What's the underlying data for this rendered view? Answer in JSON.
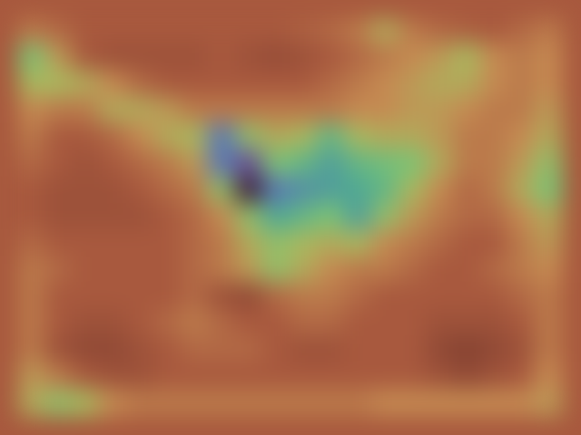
{
  "chart_data": {
    "type": "heatmap",
    "tick_labels": false,
    "zlim": [
      0,
      1
    ],
    "cells": [
      [
        0.3,
        0.25,
        0.2,
        0.2,
        0.2,
        0.2,
        0.2,
        0.2,
        0.2,
        0.2,
        0.22,
        0.25,
        0.3,
        0.45,
        0.3,
        0.25,
        0.22,
        0.2,
        0.25,
        0.3
      ],
      [
        0.6,
        0.4,
        0.2,
        0.15,
        0.15,
        0.15,
        0.15,
        0.2,
        0.15,
        0.12,
        0.15,
        0.2,
        0.25,
        0.3,
        0.35,
        0.4,
        0.5,
        0.35,
        0.3,
        0.35
      ],
      [
        0.5,
        0.5,
        0.45,
        0.35,
        0.25,
        0.2,
        0.2,
        0.2,
        0.2,
        0.2,
        0.2,
        0.25,
        0.3,
        0.35,
        0.4,
        0.45,
        0.45,
        0.35,
        0.3,
        0.35
      ],
      [
        0.35,
        0.3,
        0.3,
        0.45,
        0.45,
        0.4,
        0.3,
        0.3,
        0.3,
        0.3,
        0.3,
        0.3,
        0.35,
        0.35,
        0.4,
        0.4,
        0.35,
        0.3,
        0.3,
        0.4
      ],
      [
        0.3,
        0.2,
        0.2,
        0.25,
        0.35,
        0.45,
        0.5,
        0.8,
        0.55,
        0.45,
        0.5,
        0.65,
        0.5,
        0.45,
        0.45,
        0.4,
        0.3,
        0.3,
        0.35,
        0.45
      ],
      [
        0.25,
        0.2,
        0.15,
        0.2,
        0.25,
        0.3,
        0.4,
        0.8,
        0.9,
        0.6,
        0.65,
        0.72,
        0.65,
        0.62,
        0.6,
        0.45,
        0.3,
        0.3,
        0.4,
        0.55
      ],
      [
        0.2,
        0.15,
        0.15,
        0.15,
        0.2,
        0.25,
        0.3,
        0.55,
        1.0,
        0.8,
        0.75,
        0.72,
        0.7,
        0.65,
        0.5,
        0.35,
        0.25,
        0.3,
        0.45,
        0.6
      ],
      [
        0.2,
        0.15,
        0.15,
        0.15,
        0.15,
        0.2,
        0.25,
        0.35,
        0.55,
        0.7,
        0.65,
        0.6,
        0.72,
        0.55,
        0.4,
        0.3,
        0.25,
        0.25,
        0.35,
        0.45
      ],
      [
        0.25,
        0.2,
        0.2,
        0.2,
        0.2,
        0.2,
        0.25,
        0.3,
        0.45,
        0.55,
        0.5,
        0.45,
        0.5,
        0.35,
        0.3,
        0.25,
        0.2,
        0.2,
        0.3,
        0.4
      ],
      [
        0.3,
        0.25,
        0.2,
        0.2,
        0.2,
        0.2,
        0.25,
        0.3,
        0.4,
        0.55,
        0.45,
        0.35,
        0.3,
        0.3,
        0.25,
        0.2,
        0.2,
        0.25,
        0.3,
        0.35
      ],
      [
        0.3,
        0.2,
        0.2,
        0.2,
        0.2,
        0.2,
        0.25,
        0.15,
        0.1,
        0.25,
        0.3,
        0.3,
        0.25,
        0.2,
        0.2,
        0.2,
        0.2,
        0.2,
        0.25,
        0.3
      ],
      [
        0.3,
        0.2,
        0.15,
        0.15,
        0.2,
        0.25,
        0.3,
        0.25,
        0.2,
        0.2,
        0.25,
        0.25,
        0.2,
        0.2,
        0.2,
        0.15,
        0.15,
        0.15,
        0.2,
        0.3
      ],
      [
        0.3,
        0.15,
        0.1,
        0.1,
        0.15,
        0.2,
        0.25,
        0.25,
        0.25,
        0.2,
        0.15,
        0.15,
        0.2,
        0.2,
        0.2,
        0.1,
        0.05,
        0.1,
        0.15,
        0.3
      ],
      [
        0.4,
        0.3,
        0.2,
        0.15,
        0.15,
        0.2,
        0.2,
        0.2,
        0.2,
        0.2,
        0.2,
        0.2,
        0.2,
        0.2,
        0.2,
        0.15,
        0.1,
        0.15,
        0.2,
        0.35
      ],
      [
        0.45,
        0.55,
        0.5,
        0.35,
        0.3,
        0.3,
        0.3,
        0.3,
        0.3,
        0.3,
        0.3,
        0.3,
        0.3,
        0.35,
        0.35,
        0.35,
        0.35,
        0.35,
        0.35,
        0.4
      ]
    ]
  }
}
